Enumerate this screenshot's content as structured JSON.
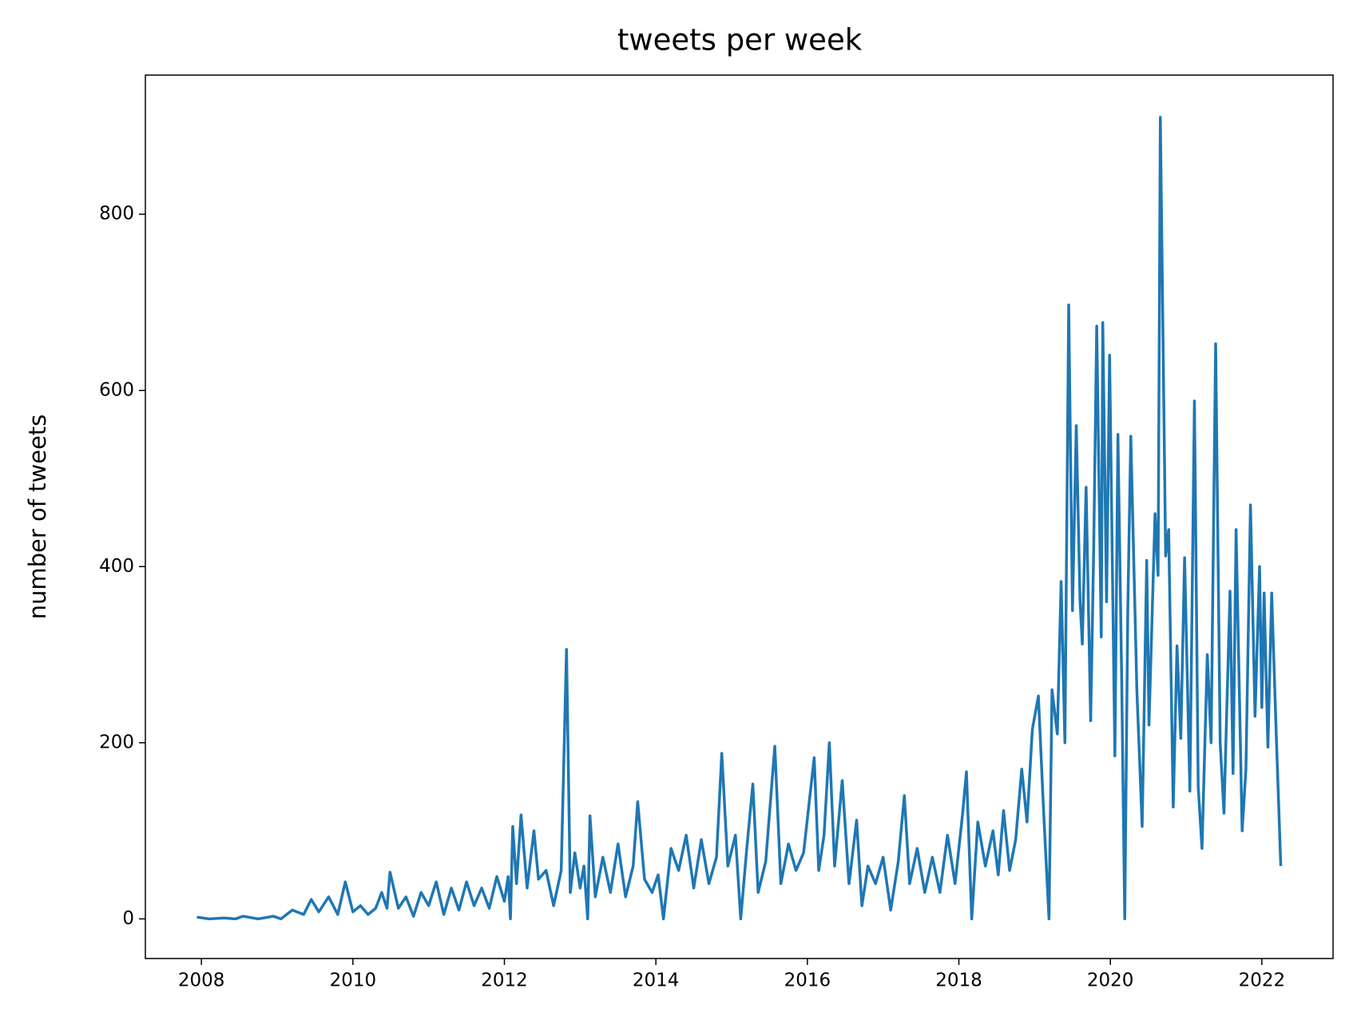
{
  "chart_data": {
    "type": "line",
    "title": "tweets per week",
    "y_label": "number of tweets",
    "x": [
      2007.94,
      2008.1,
      2008.3,
      2008.45,
      2008.55,
      2008.75,
      2008.95,
      2009.05,
      2009.2,
      2009.35,
      2009.45,
      2009.55,
      2009.68,
      2009.8,
      2009.9,
      2010.0,
      2010.1,
      2010.2,
      2010.3,
      2010.38,
      2010.45,
      2010.49,
      2010.6,
      2010.7,
      2010.8,
      2010.9,
      2011.0,
      2011.1,
      2011.2,
      2011.3,
      2011.4,
      2011.5,
      2011.6,
      2011.7,
      2011.8,
      2011.9,
      2012.0,
      2012.05,
      2012.08,
      2012.11,
      2012.16,
      2012.22,
      2012.3,
      2012.39,
      2012.45,
      2012.55,
      2012.65,
      2012.75,
      2012.82,
      2012.87,
      2012.93,
      2013.0,
      2013.05,
      2013.1,
      2013.13,
      2013.2,
      2013.3,
      2013.4,
      2013.5,
      2013.6,
      2013.7,
      2013.76,
      2013.85,
      2013.95,
      2014.03,
      2014.1,
      2014.2,
      2014.3,
      2014.4,
      2014.5,
      2014.6,
      2014.7,
      2014.8,
      2014.87,
      2014.95,
      2015.05,
      2015.12,
      2015.2,
      2015.28,
      2015.35,
      2015.45,
      2015.57,
      2015.65,
      2015.75,
      2015.85,
      2015.95,
      2016.09,
      2016.15,
      2016.22,
      2016.29,
      2016.36,
      2016.46,
      2016.55,
      2016.65,
      2016.72,
      2016.8,
      2016.9,
      2017.0,
      2017.1,
      2017.2,
      2017.28,
      2017.35,
      2017.45,
      2017.55,
      2017.65,
      2017.75,
      2017.85,
      2017.95,
      2018.05,
      2018.1,
      2018.17,
      2018.25,
      2018.35,
      2018.45,
      2018.52,
      2018.59,
      2018.67,
      2018.75,
      2018.83,
      2018.9,
      2018.97,
      2019.05,
      2019.12,
      2019.19,
      2019.23,
      2019.3,
      2019.35,
      2019.4,
      2019.45,
      2019.5,
      2019.55,
      2019.6,
      2019.63,
      2019.68,
      2019.74,
      2019.78,
      2019.82,
      2019.88,
      2019.9,
      2019.95,
      2019.99,
      2020.06,
      2020.1,
      2020.15,
      2020.19,
      2020.23,
      2020.27,
      2020.35,
      2020.42,
      2020.48,
      2020.51,
      2020.55,
      2020.59,
      2020.63,
      2020.66,
      2020.73,
      2020.77,
      2020.83,
      2020.88,
      2020.93,
      2020.98,
      2021.05,
      2021.11,
      2021.16,
      2021.21,
      2021.28,
      2021.33,
      2021.39,
      2021.45,
      2021.5,
      2021.58,
      2021.62,
      2021.66,
      2021.74,
      2021.79,
      2021.85,
      2021.91,
      2021.97,
      2022.0,
      2022.03,
      2022.08,
      2022.13,
      2022.19,
      2022.25
    ],
    "series": [
      {
        "color": "#1f77b4",
        "values": [
          2,
          0,
          1,
          0,
          3,
          0,
          3,
          0,
          10,
          5,
          22,
          8,
          25,
          5,
          42,
          8,
          15,
          5,
          12,
          30,
          12,
          53,
          12,
          25,
          3,
          30,
          15,
          42,
          5,
          35,
          10,
          42,
          15,
          35,
          12,
          48,
          20,
          48,
          0,
          105,
          40,
          118,
          35,
          100,
          45,
          55,
          15,
          55,
          306,
          30,
          75,
          35,
          60,
          0,
          117,
          25,
          70,
          30,
          85,
          25,
          60,
          133,
          45,
          30,
          50,
          0,
          80,
          55,
          95,
          35,
          90,
          40,
          70,
          188,
          60,
          95,
          0,
          80,
          153,
          30,
          65,
          196,
          40,
          85,
          55,
          75,
          183,
          55,
          95,
          200,
          60,
          157,
          40,
          112,
          15,
          60,
          40,
          70,
          10,
          65,
          140,
          40,
          80,
          30,
          70,
          30,
          95,
          40,
          120,
          167,
          0,
          110,
          60,
          100,
          50,
          123,
          55,
          90,
          170,
          110,
          215,
          253,
          120,
          0,
          260,
          210,
          383,
          200,
          697,
          350,
          560,
          360,
          312,
          490,
          225,
          420,
          673,
          320,
          677,
          360,
          640,
          185,
          550,
          270,
          0,
          350,
          548,
          260,
          105,
          407,
          220,
          340,
          460,
          390,
          910,
          412,
          442,
          127,
          310,
          205,
          410,
          145,
          588,
          150,
          80,
          300,
          200,
          653,
          200,
          120,
          372,
          165,
          442,
          100,
          170,
          470,
          230,
          400,
          240,
          370,
          195,
          370,
          210,
          60
        ]
      }
    ],
    "xlim": [
      2007.26,
      2022.94
    ],
    "xticks": [
      2008,
      2010,
      2012,
      2014,
      2016,
      2018,
      2020,
      2022
    ],
    "ylim": [
      -45,
      958
    ],
    "yticks": [
      0,
      200,
      400,
      600,
      800
    ]
  }
}
